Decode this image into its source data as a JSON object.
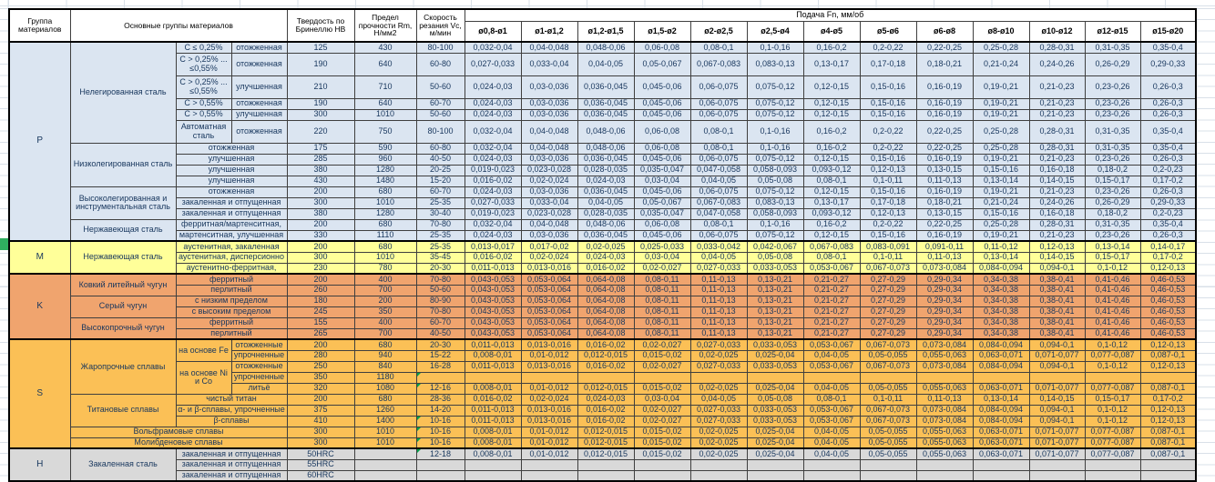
{
  "sheet": {
    "colors": {
      "p_fill": "#dbe5f1",
      "m_fill": "#ffff99",
      "k_fill": "#f0a46e",
      "s_fill": "#fbc056",
      "h_fill": "#d9d9d9",
      "triangle_green": "#00a14b",
      "gutter_marker_green": "#2fae5f",
      "text_navy": "#17365d"
    },
    "headers": {
      "group": "Группа материалов",
      "main_groups": "Основные группы материалов",
      "hardness": "Твердость по Бринеллю HB",
      "strength": "Предел прочности Rm, Н/мм2",
      "speed": "Скорость резания Vc, м/мин",
      "feed": "Подача Fn, мм/об",
      "diameters": [
        "ø0,8-ø1",
        "ø1-ø1,2",
        "ø1,2-ø1,5",
        "ø1,5-ø2",
        "ø2-ø2,5",
        "ø2,5-ø4",
        "ø4-ø5",
        "ø5-ø6",
        "ø6-ø8",
        "ø8-ø10",
        "ø10-ø12",
        "ø12-ø15",
        "ø15-ø20"
      ]
    },
    "feed_patterns": {
      "A": [
        "0,032-0,04",
        "0,04-0,048",
        "0,048-0,06",
        "0,06-0,08",
        "0,08-0,1",
        "0,1-0,16",
        "0,16-0,2",
        "0,2-0,22",
        "0,22-0,25",
        "0,25-0,28",
        "0,28-0,31",
        "0,31-0,35",
        "0,35-0,4"
      ],
      "B": [
        "0,027-0,033",
        "0,033-0,04",
        "0,04-0,05",
        "0,05-0,067",
        "0,067-0,083",
        "0,083-0,13",
        "0,13-0,17",
        "0,17-0,18",
        "0,18-0,21",
        "0,21-0,24",
        "0,24-0,26",
        "0,26-0,29",
        "0,29-0,33"
      ],
      "C": [
        "0,024-0,03",
        "0,03-0,036",
        "0,036-0,045",
        "0,045-0,06",
        "0,06-0,075",
        "0,075-0,12",
        "0,12-0,15",
        "0,15-0,16",
        "0,16-0,19",
        "0,19-0,21",
        "0,21-0,23",
        "0,23-0,26",
        "0,26-0,3"
      ],
      "D": [
        "0,019-0,023",
        "0,023-0,028",
        "0,028-0,035",
        "0,035-0,047",
        "0,047-0,058",
        "0,058-0,093",
        "0,093-0,12",
        "0,12-0,13",
        "0,13-0,15",
        "0,15-0,16",
        "0,16-0,18",
        "0,18-0,2",
        "0,2-0,23"
      ],
      "E": [
        "0,016-0,02",
        "0,02-0,024",
        "0,024-0,03",
        "0,03-0,04",
        "0,04-0,05",
        "0,05-0,08",
        "0,08-0,1",
        "0,1-0,11",
        "0,11-0,13",
        "0,13-0,14",
        "0,14-0,15",
        "0,15-0,17",
        "0,17-0,2"
      ],
      "M1": [
        "0,013-0,017",
        "0,017-0,02",
        "0,02-0,025",
        "0,025-0,033",
        "0,033-0,042",
        "0,042-0,067",
        "0,067-0,083",
        "0,083-0,091",
        "0,091-0,11",
        "0,11-0,12",
        "0,12-0,13",
        "0,13-0,14",
        "0,14-0,17"
      ],
      "F": [
        "0,011-0,013",
        "0,013-0,016",
        "0,016-0,02",
        "0,02-0,027",
        "0,027-0,033",
        "0,033-0,053",
        "0,053-0,067",
        "0,067-0,073",
        "0,073-0,084",
        "0,084-0,094",
        "0,094-0,1",
        "0,1-0,12",
        "0,12-0,13"
      ],
      "K1": [
        "0,043-0,053",
        "0,053-0,064",
        "0,064-0,08",
        "0,08-0,11",
        "0,11-0,13",
        "0,13-0,21",
        "0,21-0,27",
        "0,27-0,29",
        "0,29-0,34",
        "0,34-0,38",
        "0,38-0,41",
        "0,41-0,46",
        "0,46-0,53"
      ],
      "G": [
        "0,008-0,01",
        "0,01-0,012",
        "0,012-0,015",
        "0,015-0,02",
        "0,02-0,025",
        "0,025-0,04",
        "0,04-0,05",
        "0,05-0,055",
        "0,055-0,063",
        "0,063-0,071",
        "0,071-0,077",
        "0,077-0,087",
        "0,087-0,1"
      ]
    },
    "rows": [
      {
        "sec": "p",
        "g": "P",
        "grs": 15,
        "first": true,
        "cells": [
          [
            "Нелегированная сталь",
            1,
            6
          ],
          [
            "C ≤ 0,25%",
            1,
            1
          ],
          [
            "отожженная",
            1,
            1
          ]
        ],
        "hb": "125",
        "rm": "430",
        "vc": "80-100",
        "fp": "A",
        "h": 1
      },
      {
        "sec": "p",
        "cells": [
          [
            "C > 0,25% ... ≤0,55%",
            1,
            1
          ],
          [
            "отожженная",
            1,
            1
          ]
        ],
        "hb": "190",
        "rm": "640",
        "vc": "60-80",
        "fp": "B",
        "h": 2
      },
      {
        "sec": "p",
        "cells": [
          [
            "C > 0,25% ... ≤0,55%",
            1,
            1
          ],
          [
            "улучшенная",
            1,
            1
          ]
        ],
        "hb": "210",
        "rm": "710",
        "vc": "50-60",
        "fp": "C",
        "h": 2
      },
      {
        "sec": "p",
        "cells": [
          [
            "C > 0,55%",
            1,
            1
          ],
          [
            "отожженная",
            1,
            1
          ]
        ],
        "hb": "190",
        "rm": "640",
        "vc": "60-70",
        "fp": "C",
        "h": 1
      },
      {
        "sec": "p",
        "cells": [
          [
            "C > 0,55%",
            1,
            1
          ],
          [
            "улучшенная",
            1,
            1
          ]
        ],
        "hb": "300",
        "rm": "1010",
        "vc": "50-60",
        "fp": "C",
        "h": 1
      },
      {
        "sec": "p",
        "cells": [
          [
            "Автоматная сталь",
            1,
            1
          ],
          [
            "отожженная",
            1,
            1
          ]
        ],
        "hb": "220",
        "rm": "750",
        "vc": "80-100",
        "fp": "A",
        "h": 2
      },
      {
        "sec": "p",
        "cells": [
          [
            "Низколегированная сталь",
            1,
            4
          ],
          [
            "отожженная",
            2,
            1
          ]
        ],
        "hb": "175",
        "rm": "590",
        "vc": "60-80",
        "fp": "A",
        "h": 1
      },
      {
        "sec": "p",
        "cells": [
          [
            "улучшенная",
            2,
            1
          ]
        ],
        "hb": "285",
        "rm": "960",
        "vc": "40-50",
        "fp": "C",
        "h": 1
      },
      {
        "sec": "p",
        "cells": [
          [
            "улучшенная",
            2,
            1
          ]
        ],
        "hb": "380",
        "rm": "1280",
        "vc": "20-25",
        "fp": "D",
        "h": 1
      },
      {
        "sec": "p",
        "cells": [
          [
            "улучшенная",
            2,
            1
          ]
        ],
        "hb": "430",
        "rm": "1480",
        "vc": "15-20",
        "fp": "E",
        "h": 1
      },
      {
        "sec": "p",
        "cells": [
          [
            "Высоколегированная и инструментальная сталь",
            1,
            3
          ],
          [
            "отожженная",
            2,
            1
          ]
        ],
        "hb": "200",
        "rm": "680",
        "vc": "60-70",
        "fp": "C",
        "h": 1
      },
      {
        "sec": "p",
        "cells": [
          [
            "закаленная и отпущенная",
            2,
            1
          ]
        ],
        "hb": "300",
        "rm": "1010",
        "vc": "25-35",
        "fp": "B",
        "h": 1
      },
      {
        "sec": "p",
        "cells": [
          [
            "закаленная и отпущенная",
            2,
            1
          ]
        ],
        "hb": "380",
        "rm": "1280",
        "vc": "30-40",
        "fp": "D",
        "h": 1
      },
      {
        "sec": "p",
        "cells": [
          [
            "Нержавеющая сталь",
            1,
            2
          ],
          [
            "ферритная/мартенситная,",
            2,
            1
          ]
        ],
        "hb": "200",
        "rm": "680",
        "vc": "70-80",
        "fp": "A",
        "h": 1
      },
      {
        "sec": "p",
        "cells": [
          [
            "мартенситная, улучшенная",
            2,
            1
          ]
        ],
        "hb": "330",
        "rm": "1110",
        "vc": "25-35",
        "fp": "C",
        "h": 1
      },
      {
        "sec": "m",
        "g": "M",
        "grs": 3,
        "first": true,
        "cells": [
          [
            "Нержавеющая сталь",
            1,
            3
          ],
          [
            "аустенитная, закаленная",
            2,
            1
          ]
        ],
        "hb": "200",
        "rm": "680",
        "vc": "25-35",
        "fp": "M1",
        "h": 1
      },
      {
        "sec": "m",
        "cells": [
          [
            "аустенитная, дисперсионно",
            2,
            1
          ]
        ],
        "hb": "300",
        "rm": "1010",
        "vc": "35-45",
        "fp": "E",
        "h": 1
      },
      {
        "sec": "m",
        "cells": [
          [
            "аустенитно-ферритная,",
            2,
            1
          ]
        ],
        "hb": "230",
        "rm": "780",
        "vc": "20-30",
        "fp": "F",
        "h": 1
      },
      {
        "sec": "k",
        "g": "K",
        "grs": 6,
        "first": true,
        "cells": [
          [
            "Ковкий литейный чугун",
            1,
            2
          ],
          [
            "ферритный",
            2,
            1
          ]
        ],
        "hb": "200",
        "rm": "400",
        "vc": "70-80",
        "fp": "K1",
        "h": 1
      },
      {
        "sec": "k",
        "cells": [
          [
            "перлитный",
            2,
            1
          ]
        ],
        "hb": "260",
        "rm": "700",
        "vc": "50-60",
        "fp": "K1",
        "h": 1
      },
      {
        "sec": "k",
        "cells": [
          [
            "Серый чугун",
            1,
            2
          ],
          [
            "с низким пределом",
            2,
            1
          ]
        ],
        "hb": "180",
        "rm": "200",
        "vc": "80-90",
        "fp": "K1",
        "h": 1
      },
      {
        "sec": "k",
        "cells": [
          [
            "с высоким пределом",
            2,
            1
          ]
        ],
        "hb": "245",
        "rm": "350",
        "vc": "70-80",
        "fp": "K1",
        "h": 1
      },
      {
        "sec": "k",
        "cells": [
          [
            "Высокопрочный чугун",
            1,
            2
          ],
          [
            "ферритный",
            2,
            1
          ]
        ],
        "hb": "155",
        "rm": "400",
        "vc": "60-70",
        "fp": "K1",
        "h": 1
      },
      {
        "sec": "k",
        "cells": [
          [
            "перлитный",
            2,
            1
          ]
        ],
        "hb": "265",
        "rm": "700",
        "vc": "40-50",
        "fp": "K1",
        "h": 1
      },
      {
        "sec": "s",
        "g": "S",
        "grs": 10,
        "first": true,
        "cells": [
          [
            "Жаропрочные сплавы",
            1,
            5
          ],
          [
            "на основе Fe",
            1,
            2
          ],
          [
            "отожженные",
            1,
            1
          ]
        ],
        "hb": "200",
        "rm": "680",
        "vc": "20-30",
        "fp": "F",
        "h": 1
      },
      {
        "sec": "s",
        "cells": [
          [
            "упрочненные",
            1,
            1
          ]
        ],
        "hb": "280",
        "rm": "940",
        "vc": "15-22",
        "fp": "G",
        "h": 1
      },
      {
        "sec": "s",
        "cells": [
          [
            "на основе Ni и Со",
            1,
            3
          ],
          [
            "отожженные",
            1,
            1
          ]
        ],
        "hb": "250",
        "rm": "840",
        "vc": "16-28",
        "fp": "F",
        "h": 1
      },
      {
        "sec": "s",
        "cells": [
          [
            "упрочненные",
            1,
            1
          ]
        ],
        "hb": "350",
        "rm": "1180",
        "vc": "",
        "fp": null,
        "tri": true,
        "h": 1
      },
      {
        "sec": "s",
        "cells": [
          [
            "литьё",
            1,
            1
          ]
        ],
        "hb": "320",
        "rm": "1080",
        "vc": "12-16",
        "fp": "G",
        "tri": true,
        "h": 1
      },
      {
        "sec": "s",
        "cells": [
          [
            "Титановые сплавы",
            1,
            3
          ],
          [
            "чистый титан",
            2,
            1
          ]
        ],
        "hb": "200",
        "rm": "680",
        "vc": "28-36",
        "fp": "E",
        "h": 1
      },
      {
        "sec": "s",
        "cells": [
          [
            "α- и β-сплавы, упрочненные",
            2,
            1
          ]
        ],
        "hb": "375",
        "rm": "1260",
        "vc": "14-20",
        "fp": "F",
        "h": 1
      },
      {
        "sec": "s",
        "cells": [
          [
            "β-сплавы",
            2,
            1
          ]
        ],
        "hb": "410",
        "rm": "1400",
        "vc": "10-16",
        "fp": "F",
        "tri": true,
        "h": 1
      },
      {
        "sec": "s",
        "cells": [
          [
            "Вольфрамовые сплавы",
            3,
            1
          ]
        ],
        "hb": "300",
        "rm": "1010",
        "vc": "10-16",
        "fp": "G",
        "tri": true,
        "h": 1
      },
      {
        "sec": "s",
        "cells": [
          [
            "Молибденовые сплавы",
            3,
            1
          ]
        ],
        "hb": "300",
        "rm": "1010",
        "vc": "10-16",
        "fp": "G",
        "tri": true,
        "h": 1
      },
      {
        "sec": "h",
        "g": "H",
        "grs": 3,
        "first": true,
        "cells": [
          [
            "Закаленная сталь",
            1,
            3
          ],
          [
            "закаленная и отпущенная",
            2,
            1
          ]
        ],
        "hb": "50HRC",
        "rm": "",
        "vc": "12-18",
        "fp": "G",
        "tri": true,
        "h": 1
      },
      {
        "sec": "h",
        "cells": [
          [
            "закаленная и отпущенная",
            2,
            1
          ]
        ],
        "hb": "55HRC",
        "rm": "",
        "vc": "",
        "fp": null,
        "h": 1
      },
      {
        "sec": "h",
        "cells": [
          [
            "закаленная и отпущенная",
            2,
            1
          ]
        ],
        "hb": "60HRC",
        "rm": "",
        "vc": "",
        "fp": null,
        "h": 1
      }
    ]
  }
}
